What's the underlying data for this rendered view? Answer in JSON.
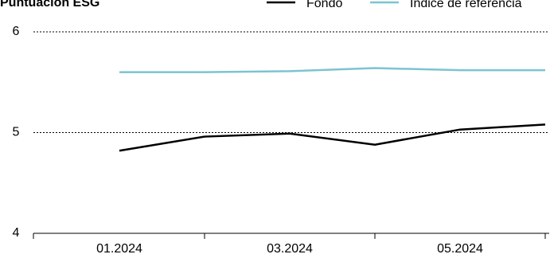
{
  "chart_data": {
    "type": "line",
    "title": "Puntuación ESG",
    "categories": [
      "01.2024",
      null,
      "03.2024",
      null,
      "05.2024",
      null
    ],
    "series": [
      {
        "name": "Fondo",
        "color": "#000000",
        "values": [
          4.82,
          4.96,
          4.99,
          4.88,
          5.03,
          5.08
        ]
      },
      {
        "name": "Índice de referencia",
        "color": "#7cc4d0",
        "values": [
          5.6,
          5.6,
          5.61,
          5.64,
          5.62,
          5.62
        ]
      }
    ],
    "ylim": [
      4,
      6
    ],
    "yticks": [
      4,
      5,
      6
    ],
    "grid": true
  }
}
